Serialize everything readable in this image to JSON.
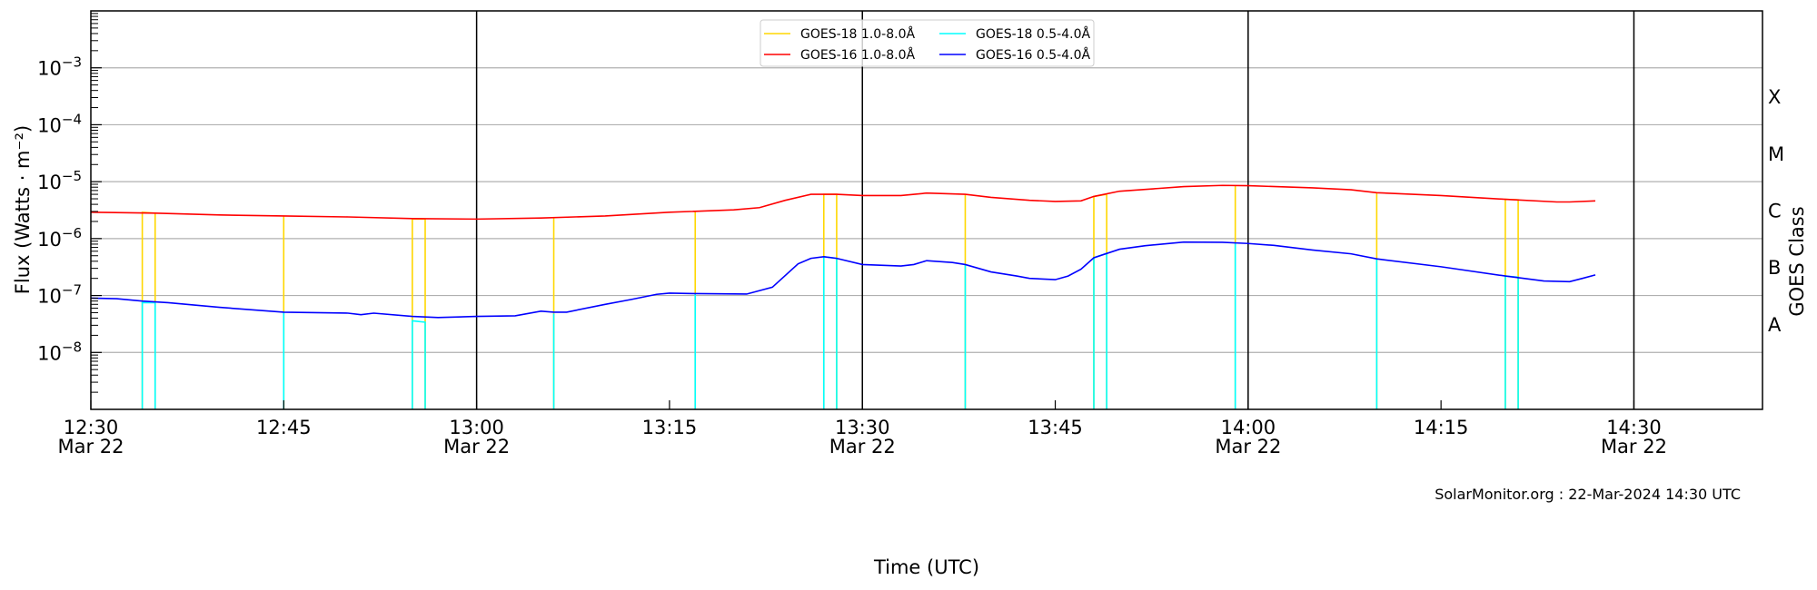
{
  "chart_data": {
    "type": "line",
    "xlabel": "Time (UTC)",
    "ylabel": "Flux (Watts · m⁻²)",
    "y2label": "GOES Class",
    "yscale": "log",
    "xlim": [
      "12:30",
      "14:40"
    ],
    "ylim": [
      1e-09,
      0.01
    ],
    "grid": "horizontal at decades",
    "legend_placement": "top-center",
    "footer": "SolarMonitor.org : 22-Mar-2024 14:30 UTC",
    "x_ticks": [
      {
        "time": "12:30",
        "label": "12:30",
        "date": "Mar 22"
      },
      {
        "time": "12:45",
        "label": "12:45",
        "date": ""
      },
      {
        "time": "13:00",
        "label": "13:00",
        "date": "Mar 22"
      },
      {
        "time": "13:15",
        "label": "13:15",
        "date": ""
      },
      {
        "time": "13:30",
        "label": "13:30",
        "date": "Mar 22"
      },
      {
        "time": "13:45",
        "label": "13:45",
        "date": ""
      },
      {
        "time": "14:00",
        "label": "14:00",
        "date": "Mar 22"
      },
      {
        "time": "14:15",
        "label": "14:15",
        "date": ""
      },
      {
        "time": "14:30",
        "label": "14:30",
        "date": "Mar 22"
      }
    ],
    "vertical_lines": [
      "13:00",
      "13:30",
      "14:00",
      "14:30"
    ],
    "y_ticks": [
      {
        "value": 0.001,
        "base": "10",
        "exp": "−3"
      },
      {
        "value": 0.0001,
        "base": "10",
        "exp": "−4"
      },
      {
        "value": 1e-05,
        "base": "10",
        "exp": "−5"
      },
      {
        "value": 1e-06,
        "base": "10",
        "exp": "−6"
      },
      {
        "value": 1e-07,
        "base": "10",
        "exp": "−7"
      },
      {
        "value": 1e-08,
        "base": "10",
        "exp": "−8"
      }
    ],
    "classes": [
      {
        "label": "X",
        "value": 0.000316
      },
      {
        "label": "M",
        "value": 3.16e-05
      },
      {
        "label": "C",
        "value": 3.16e-06
      },
      {
        "label": "B",
        "value": 3.16e-07
      },
      {
        "label": "A",
        "value": 3.16e-08
      }
    ],
    "legend": [
      {
        "name": "GOES-18 1.0-8.0Å",
        "color": "#ffd700"
      },
      {
        "name": "GOES-16 1.0-8.0Å",
        "color": "#ff0000"
      },
      {
        "name": "GOES-18 0.5-4.0Å",
        "color": "#00ffff"
      },
      {
        "name": "GOES-16 0.5-4.0Å",
        "color": "#0000ff"
      }
    ],
    "series": [
      {
        "name": "GOES-16 1.0-8.0Å",
        "color": "#ff0000",
        "x": [
          "12:30",
          "12:35",
          "12:40",
          "12:45",
          "12:50",
          "12:55",
          "13:00",
          "13:05",
          "13:10",
          "13:15",
          "13:20",
          "13:22",
          "13:24",
          "13:26",
          "13:28",
          "13:30",
          "13:33",
          "13:35",
          "13:38",
          "13:40",
          "13:43",
          "13:45",
          "13:47",
          "13:48",
          "13:50",
          "13:53",
          "13:55",
          "13:58",
          "14:00",
          "14:05",
          "14:08",
          "14:10",
          "14:15",
          "14:20",
          "14:24",
          "14:25",
          "14:27"
        ],
        "y": [
          2.9e-06,
          2.8e-06,
          2.6e-06,
          2.5e-06,
          2.4e-06,
          2.25e-06,
          2.2e-06,
          2.3e-06,
          2.5e-06,
          2.9e-06,
          3.2e-06,
          3.5e-06,
          4.7e-06,
          6e-06,
          6e-06,
          5.7e-06,
          5.7e-06,
          6.3e-06,
          6e-06,
          5.3e-06,
          4.7e-06,
          4.5e-06,
          4.6e-06,
          5.5e-06,
          6.8e-06,
          7.6e-06,
          8.2e-06,
          8.6e-06,
          8.5e-06,
          7.8e-06,
          7.2e-06,
          6.4e-06,
          5.7e-06,
          4.9e-06,
          4.4e-06,
          4.4e-06,
          4.6e-06
        ]
      },
      {
        "name": "GOES-16 0.5-4.0Å",
        "color": "#0000ff",
        "x": [
          "12:30",
          "12:32",
          "12:34",
          "12:36",
          "12:40",
          "12:45",
          "12:50",
          "12:51",
          "12:52",
          "12:55",
          "12:57",
          "13:00",
          "13:03",
          "13:05",
          "13:06",
          "13:07",
          "13:10",
          "13:12",
          "13:14",
          "13:15",
          "13:17",
          "13:21",
          "13:23",
          "13:25",
          "13:26",
          "13:27",
          "13:28",
          "13:30",
          "13:33",
          "13:34",
          "13:35",
          "13:37",
          "13:38",
          "13:40",
          "13:42",
          "13:43",
          "13:45",
          "13:46",
          "13:47",
          "13:48",
          "13:50",
          "13:52",
          "13:55",
          "13:58",
          "14:00",
          "14:02",
          "14:05",
          "14:08",
          "14:10",
          "14:15",
          "14:20",
          "14:23",
          "14:25",
          "14:26",
          "14:27"
        ],
        "y": [
          9e-08,
          8.8e-08,
          8e-08,
          7.5e-08,
          6.2e-08,
          5.1e-08,
          4.9e-08,
          4.6e-08,
          4.9e-08,
          4.3e-08,
          4.1e-08,
          4.3e-08,
          4.4e-08,
          5.3e-08,
          5.1e-08,
          5.1e-08,
          7e-08,
          8.5e-08,
          1.05e-07,
          1.1e-07,
          1.08e-07,
          1.06e-07,
          1.4e-07,
          3.6e-07,
          4.5e-07,
          4.8e-07,
          4.5e-07,
          3.5e-07,
          3.3e-07,
          3.5e-07,
          4.1e-07,
          3.8e-07,
          3.5e-07,
          2.6e-07,
          2.2e-07,
          2e-07,
          1.9e-07,
          2.2e-07,
          2.9e-07,
          4.6e-07,
          6.5e-07,
          7.5e-07,
          8.7e-07,
          8.6e-07,
          8.2e-07,
          7.6e-07,
          6.3e-07,
          5.4e-07,
          4.4e-07,
          3.2e-07,
          2.2e-07,
          1.8e-07,
          1.75e-07,
          2e-07,
          2.3e-07
        ]
      },
      {
        "name": "GOES-18 1.0-8.0Å",
        "color": "#ffd700",
        "x": [
          "12:34",
          "12:35",
          "12:45",
          "12:55",
          "12:56",
          "13:06",
          "13:17",
          "13:27",
          "13:28",
          "13:38",
          "13:48",
          "13:49",
          "13:59",
          "14:10",
          "14:20",
          "14:21"
        ],
        "y": [
          2.9e-06,
          2.8e-06,
          2.5e-06,
          2.2e-06,
          2.2e-06,
          2.3e-06,
          3e-06,
          6e-06,
          6e-06,
          6e-06,
          5.5e-06,
          6e-06,
          8.5e-06,
          6.4e-06,
          4.9e-06,
          4.8e-06
        ]
      },
      {
        "name": "GOES-18 0.5-4.0Å",
        "color": "#00ffff",
        "x": [
          "12:34",
          "12:35",
          "12:45",
          "12:55",
          "12:56",
          "13:06",
          "13:17",
          "13:27",
          "13:28",
          "13:38",
          "13:48",
          "13:49",
          "13:59",
          "14:10",
          "14:20",
          "14:21"
        ],
        "y": [
          7.5e-08,
          7.5e-08,
          5e-08,
          3.6e-08,
          3.4e-08,
          4.8e-08,
          1.08e-07,
          4.8e-07,
          4.5e-07,
          3.5e-07,
          4.6e-07,
          5.5e-07,
          8.4e-07,
          4.4e-07,
          2.2e-07,
          2.1e-07
        ]
      }
    ]
  }
}
